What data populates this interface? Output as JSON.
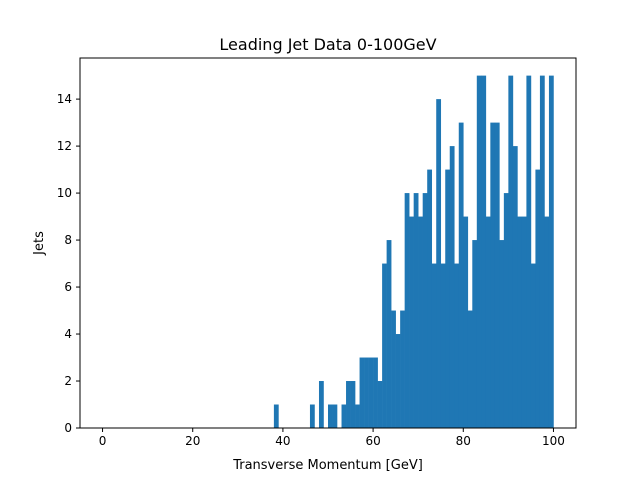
{
  "chart_data": {
    "type": "bar",
    "title": "Leading Jet Data 0-100GeV",
    "xlabel": "Transverse Momentum [GeV]",
    "ylabel": "Jets",
    "xlim": [
      -5,
      105
    ],
    "ylim": [
      0,
      15.75
    ],
    "bin_width": 1,
    "xticks": [
      0,
      20,
      40,
      60,
      80,
      100
    ],
    "yticks": [
      0,
      2,
      4,
      6,
      8,
      10,
      12,
      14
    ],
    "color": "#1f77b4",
    "grid": false,
    "bin_starts": [
      38,
      46,
      48,
      50,
      51,
      53,
      54,
      55,
      56,
      57,
      58,
      59,
      60,
      61,
      62,
      63,
      64,
      65,
      66,
      67,
      68,
      69,
      70,
      71,
      72,
      73,
      74,
      75,
      76,
      77,
      78,
      79,
      80,
      81,
      82,
      83,
      84,
      85,
      86,
      87,
      88,
      89,
      90,
      91,
      92,
      93,
      94,
      95,
      96,
      97,
      98,
      99
    ],
    "counts": [
      1,
      1,
      2,
      1,
      1,
      1,
      2,
      2,
      1,
      3,
      3,
      3,
      3,
      2,
      7,
      8,
      5,
      4,
      5,
      10,
      9,
      10,
      9,
      10,
      11,
      7,
      14,
      7,
      11,
      12,
      7,
      13,
      9,
      5,
      8,
      15,
      15,
      9,
      13,
      13,
      8,
      10,
      15,
      12,
      9,
      9,
      15,
      7,
      11,
      15,
      9,
      15
    ]
  }
}
